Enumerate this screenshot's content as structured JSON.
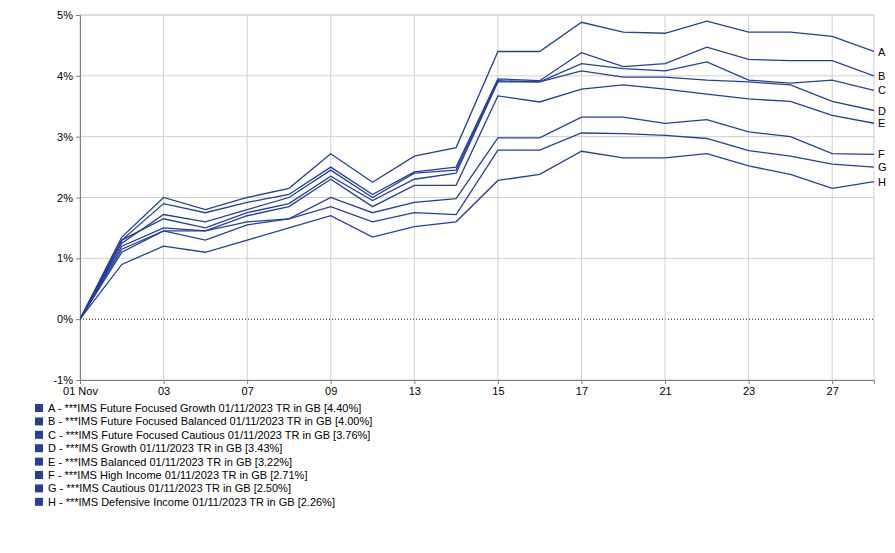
{
  "chart_data": {
    "type": "line",
    "categories": [
      "01 Nov",
      null,
      "03",
      null,
      "07",
      null,
      "09",
      null,
      "13",
      null,
      "15",
      null,
      "17",
      null,
      "21",
      null,
      "23",
      null,
      "27",
      null
    ],
    "ylim": [
      -1,
      5
    ],
    "yticks": [
      {
        "value": -1,
        "label": "-1%"
      },
      {
        "value": 0,
        "label": "0%"
      },
      {
        "value": 1,
        "label": "1%"
      },
      {
        "value": 2,
        "label": "2%"
      },
      {
        "value": 3,
        "label": "3%"
      },
      {
        "value": 4,
        "label": "4%"
      },
      {
        "value": 5,
        "label": "5%"
      }
    ],
    "grid": true,
    "legend": "bottom-left",
    "series": [
      {
        "name": "A - ***IMS Future Focused Growth 01/11/2023 TR in GB [4.40%]",
        "label": "A",
        "color": "#233f9b",
        "values": [
          0,
          1.35,
          2.0,
          1.8,
          2.0,
          2.15,
          2.72,
          2.25,
          2.68,
          2.82,
          4.4,
          4.4,
          4.88,
          4.72,
          4.7,
          4.9,
          4.72,
          4.72,
          4.65,
          4.4
        ]
      },
      {
        "name": "B - ***IMS Future Focused Balanced 01/11/2023 TR in GB [4.00%]",
        "label": "B",
        "color": "#233f9b",
        "values": [
          0,
          1.3,
          1.9,
          1.75,
          1.92,
          2.05,
          2.5,
          2.05,
          2.42,
          2.5,
          3.95,
          3.92,
          4.38,
          4.15,
          4.2,
          4.47,
          4.27,
          4.25,
          4.25,
          4.0
        ]
      },
      {
        "name": "C - ***IMS Future Focused Cautious 01/11/2023 TR in GB [3.76%]",
        "label": "C",
        "color": "#233f9b",
        "values": [
          0,
          1.25,
          1.72,
          1.6,
          1.8,
          2.0,
          2.45,
          2.0,
          2.4,
          2.45,
          3.92,
          3.9,
          4.2,
          4.12,
          4.08,
          4.23,
          3.93,
          3.88,
          3.93,
          3.76
        ]
      },
      {
        "name": "D - ***IMS Growth 01/11/2023 TR in GB [3.43%]",
        "label": "D",
        "color": "#233f9b",
        "values": [
          0,
          1.3,
          1.65,
          1.5,
          1.75,
          1.9,
          2.35,
          1.95,
          2.3,
          2.4,
          3.9,
          3.9,
          4.08,
          3.98,
          3.98,
          3.93,
          3.9,
          3.85,
          3.58,
          3.43
        ]
      },
      {
        "name": "E - ***IMS Balanced 01/11/2023 TR in GB [3.22%]",
        "label": "E",
        "color": "#233f9b",
        "values": [
          0,
          1.2,
          1.5,
          1.45,
          1.7,
          1.85,
          2.3,
          1.85,
          2.2,
          2.2,
          3.67,
          3.57,
          3.78,
          3.85,
          3.78,
          3.7,
          3.62,
          3.58,
          3.35,
          3.22
        ]
      },
      {
        "name": "F - ***IMS High Income 01/11/2023 TR in GB [2.71%]",
        "label": "F",
        "color": "#233f9b",
        "values": [
          0,
          1.15,
          1.45,
          1.45,
          1.6,
          1.65,
          2.0,
          1.75,
          1.92,
          1.98,
          2.98,
          2.98,
          3.32,
          3.32,
          3.22,
          3.28,
          3.08,
          3.0,
          2.72,
          2.71
        ]
      },
      {
        "name": "G - ***IMS Cautious 01/11/2023 TR in GB [2.50%]",
        "label": "G",
        "color": "#233f9b",
        "values": [
          0,
          1.1,
          1.45,
          1.3,
          1.55,
          1.65,
          1.85,
          1.6,
          1.75,
          1.72,
          2.78,
          2.78,
          3.06,
          3.05,
          3.02,
          2.97,
          2.77,
          2.68,
          2.55,
          2.5
        ]
      },
      {
        "name": "H - ***IMS Defensive Income 01/11/2023 TR in GB [2.26%]",
        "label": "H",
        "color": "#233f9b",
        "values": [
          0,
          0.9,
          1.2,
          1.1,
          1.3,
          1.5,
          1.7,
          1.35,
          1.52,
          1.6,
          2.28,
          2.38,
          2.76,
          2.65,
          2.65,
          2.72,
          2.52,
          2.38,
          2.15,
          2.26
        ]
      }
    ]
  }
}
